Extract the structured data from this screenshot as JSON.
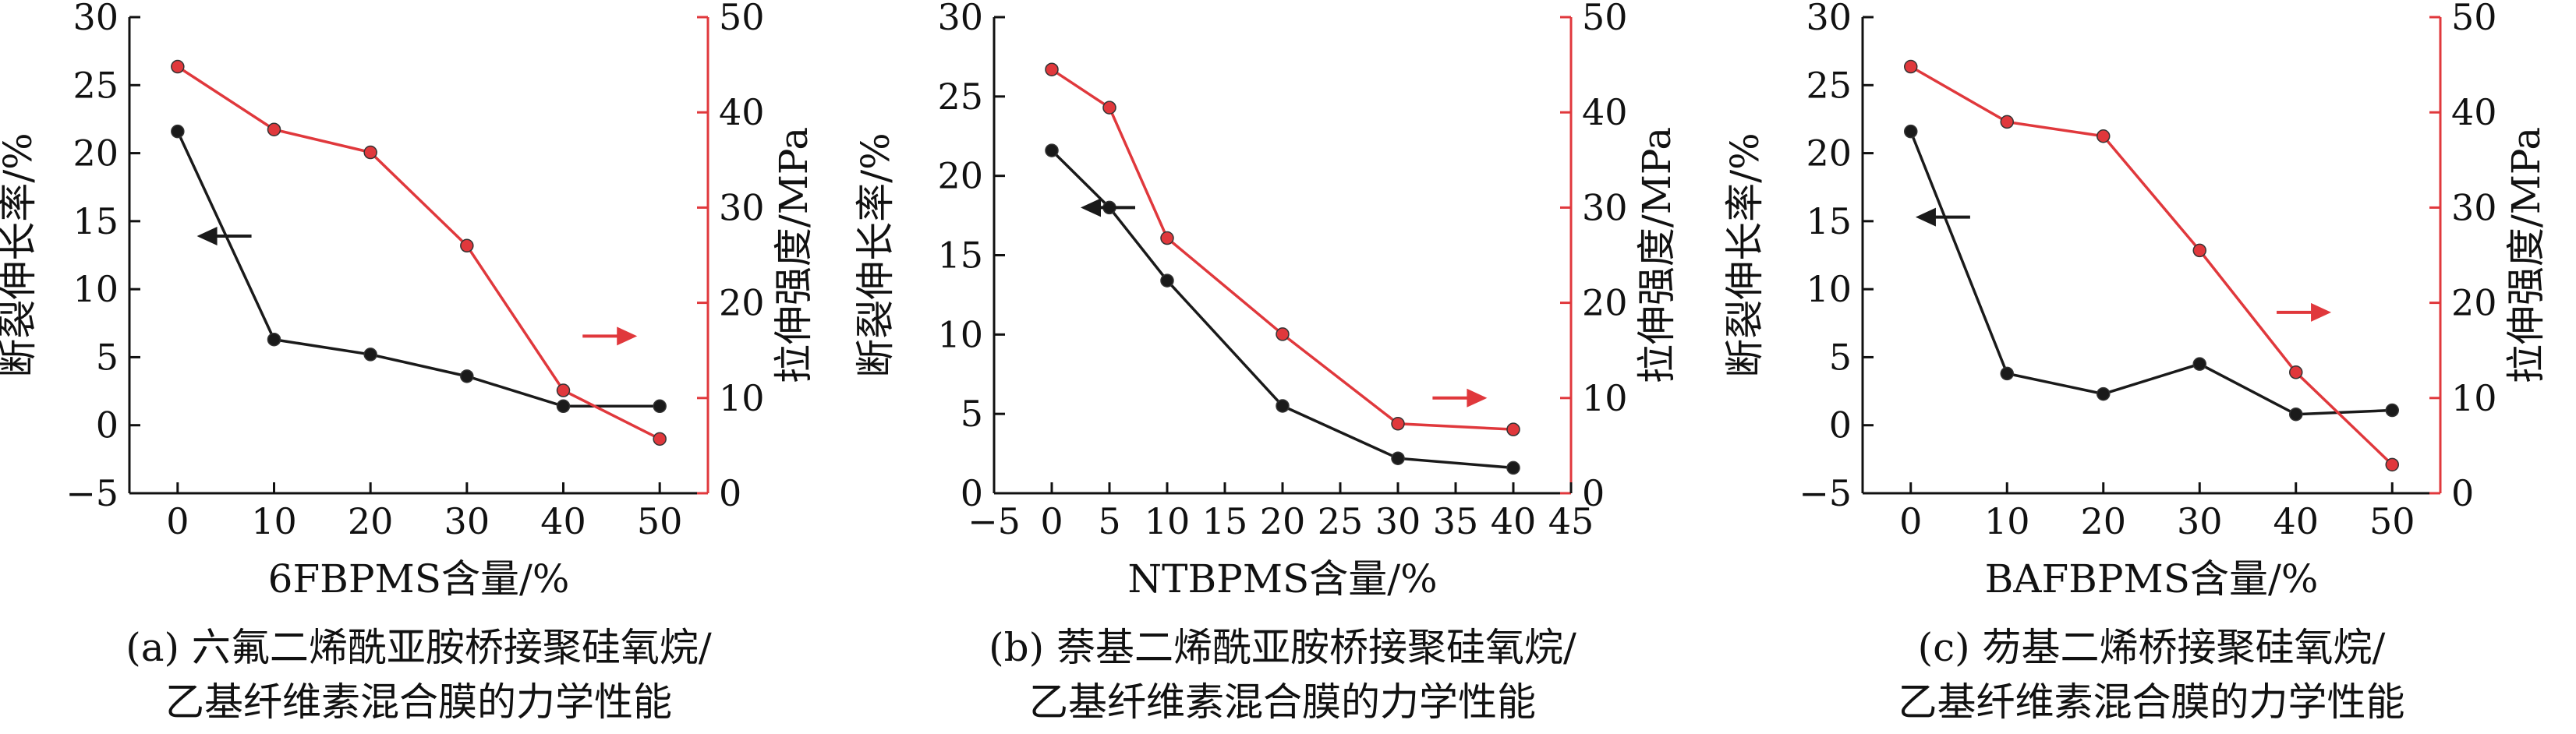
{
  "colors": {
    "left_series": "#1a1a1a",
    "right_series": "#e0383c",
    "axis": "#111111"
  },
  "chart_data": [
    {
      "type": "line",
      "xlabel": "6FBPMS含量/%",
      "ylabel_left": "断裂伸长率/%",
      "ylabel_right": "拉伸强度/MPa",
      "caption_line1": "(a) 六氟二烯酰亚胺桥接聚硅氧烷/",
      "caption_line2": "乙基纤维素混合膜的力学性能",
      "xlim": [
        -5,
        55
      ],
      "x_ticks": [
        0,
        10,
        20,
        30,
        40,
        50
      ],
      "ylim_left": [
        -5,
        30
      ],
      "ylim_right": [
        0,
        50
      ],
      "left_ticks": [
        -5,
        0,
        5,
        10,
        15,
        20,
        25,
        30
      ],
      "right_ticks": [
        0,
        10,
        20,
        30,
        40,
        50
      ],
      "series": [
        {
          "axis": "left",
          "x": [
            0,
            10,
            20,
            30,
            40,
            50
          ],
          "values": [
            21.6,
            6.3,
            5.2,
            3.6,
            1.4,
            1.4
          ]
        },
        {
          "axis": "right",
          "x": [
            0,
            10,
            20,
            30,
            40,
            50
          ],
          "values": [
            44.8,
            38.2,
            35.8,
            26.0,
            10.8,
            5.7
          ]
        }
      ],
      "arrows": [
        {
          "direction": "left",
          "axis": "left",
          "x": 2,
          "y": 13.9
        },
        {
          "direction": "right",
          "axis": "right",
          "x": 42,
          "y": 16.5
        }
      ]
    },
    {
      "type": "line",
      "xlabel": "NTBPMS含量/%",
      "ylabel_left": "断裂伸长率/%",
      "ylabel_right": "拉伸强度/MPa",
      "caption_line1": "(b) 萘基二烯酰亚胺桥接聚硅氧烷/",
      "caption_line2": "乙基纤维素混合膜的力学性能",
      "xlim": [
        -5,
        45
      ],
      "x_ticks": [
        -5,
        0,
        5,
        10,
        15,
        20,
        25,
        30,
        35,
        40,
        45
      ],
      "ylim_left": [
        0,
        30
      ],
      "ylim_right": [
        0,
        50
      ],
      "left_ticks": [
        0,
        5,
        10,
        15,
        20,
        25,
        30
      ],
      "right_ticks": [
        0,
        10,
        20,
        30,
        40,
        50
      ],
      "series": [
        {
          "axis": "left",
          "x": [
            0,
            5,
            10,
            20,
            30,
            40
          ],
          "values": [
            21.6,
            18.0,
            13.4,
            5.5,
            2.2,
            1.6
          ]
        },
        {
          "axis": "right",
          "x": [
            0,
            5,
            10,
            20,
            30,
            40
          ],
          "values": [
            44.5,
            40.5,
            26.8,
            16.7,
            7.3,
            6.7
          ]
        }
      ],
      "arrows": [
        {
          "direction": "left",
          "axis": "left",
          "x": 2.5,
          "y": 18.0
        },
        {
          "direction": "right",
          "axis": "right",
          "x": 33,
          "y": 10.0
        }
      ]
    },
    {
      "type": "line",
      "xlabel": "BAFBPMS含量/%",
      "ylabel_left": "断裂伸长率/%",
      "ylabel_right": "拉伸强度/MPa",
      "caption_line1": "(c) 芴基二烯桥接聚硅氧烷/",
      "caption_line2": "乙基纤维素混合膜的力学性能",
      "xlim": [
        -5,
        55
      ],
      "x_ticks": [
        0,
        10,
        20,
        30,
        40,
        50
      ],
      "ylim_left": [
        -5,
        30
      ],
      "ylim_right": [
        0,
        50
      ],
      "left_ticks": [
        -5,
        0,
        5,
        10,
        15,
        20,
        25,
        30
      ],
      "right_ticks": [
        0,
        10,
        20,
        30,
        40,
        50
      ],
      "series": [
        {
          "axis": "left",
          "x": [
            0,
            10,
            20,
            30,
            40,
            50
          ],
          "values": [
            21.6,
            3.8,
            2.3,
            4.5,
            0.8,
            1.1
          ]
        },
        {
          "axis": "right",
          "x": [
            0,
            10,
            20,
            30,
            40,
            50
          ],
          "values": [
            44.8,
            39.0,
            37.5,
            25.5,
            12.7,
            3.0
          ]
        }
      ],
      "arrows": [
        {
          "direction": "left",
          "axis": "left",
          "x": 0.5,
          "y": 15.3
        },
        {
          "direction": "right",
          "axis": "right",
          "x": 38,
          "y": 19.0
        }
      ]
    }
  ]
}
